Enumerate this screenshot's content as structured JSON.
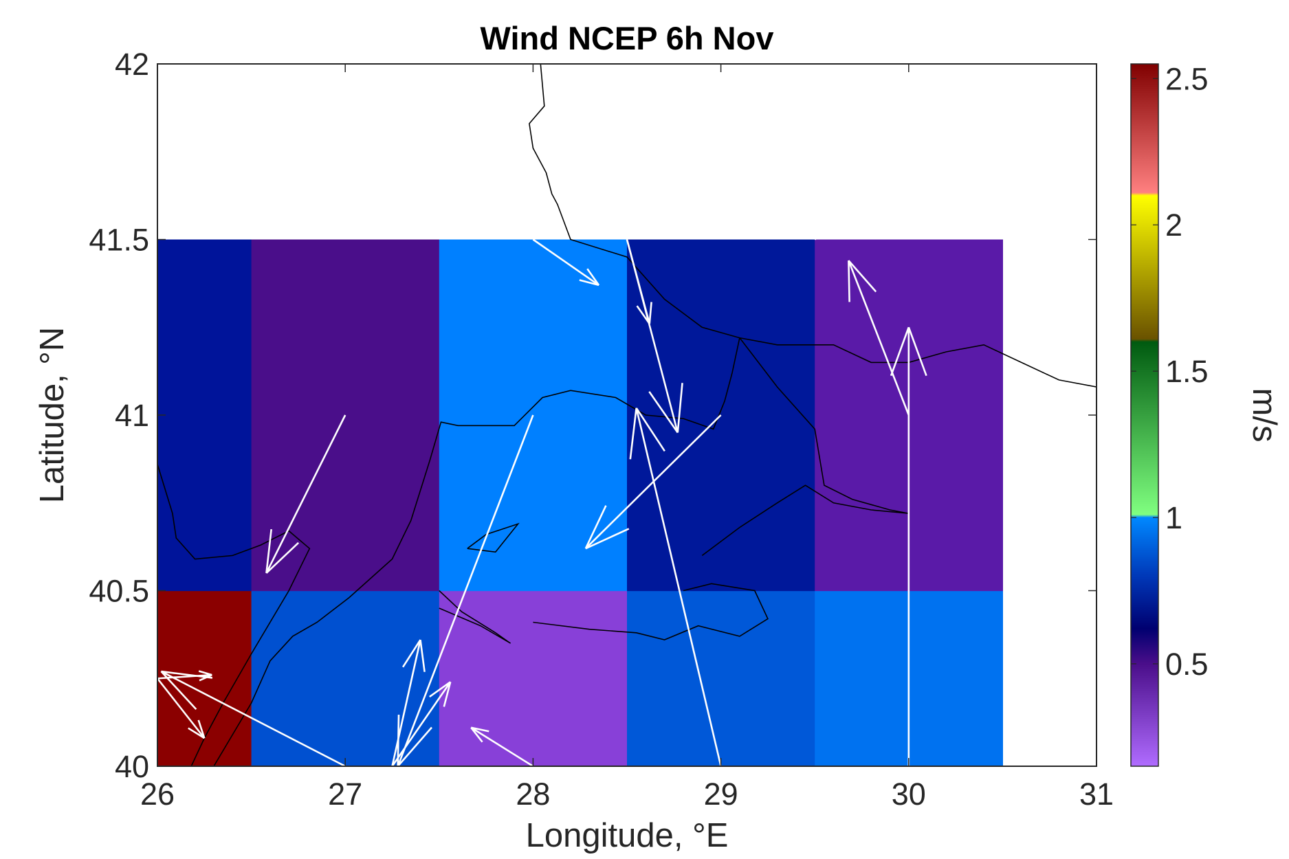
{
  "chart_data": {
    "type": "heatmap",
    "title": "Wind NCEP 6h Nov",
    "xlabel": "Longitude, °E",
    "ylabel": "Latitude, °N",
    "xlim": [
      26,
      31
    ],
    "ylim": [
      40,
      42
    ],
    "xticks": [
      "26",
      "27",
      "28",
      "29",
      "30",
      "31"
    ],
    "yticks": [
      "40",
      "40.5",
      "41",
      "41.5",
      "42"
    ],
    "colorbar": {
      "label": "m/s",
      "range": [
        0.15,
        2.55
      ],
      "ticks": [
        "0.5",
        "1",
        "1.5",
        "2",
        "2.5"
      ],
      "stops": [
        {
          "value": 0.15,
          "color": "#b06cff"
        },
        {
          "value": 0.5,
          "color": "#4a0e8a"
        },
        {
          "value": 0.62,
          "color": "#000070"
        },
        {
          "value": 0.8,
          "color": "#0038b8"
        },
        {
          "value": 1.0,
          "color": "#0088ff"
        },
        {
          "value": 1.01,
          "color": "#80ff80"
        },
        {
          "value": 1.6,
          "color": "#005a10"
        },
        {
          "value": 1.61,
          "color": "#6a5200"
        },
        {
          "value": 2.1,
          "color": "#ffff00"
        },
        {
          "value": 2.11,
          "color": "#ff8080"
        },
        {
          "value": 2.55,
          "color": "#800000"
        }
      ]
    },
    "cells": [
      {
        "lon": [
          26,
          26.5
        ],
        "lat": [
          40,
          40.5
        ],
        "value": 2.5,
        "color": "#8b0000"
      },
      {
        "lon": [
          26.5,
          27.5
        ],
        "lat": [
          40,
          40.5
        ],
        "value": 0.87,
        "color": "#0050d0"
      },
      {
        "lon": [
          27.5,
          28.5
        ],
        "lat": [
          40,
          40.5
        ],
        "value": 0.35,
        "color": "#8840d8"
      },
      {
        "lon": [
          28.5,
          29.5
        ],
        "lat": [
          40,
          40.5
        ],
        "value": 0.88,
        "color": "#0058d8"
      },
      {
        "lon": [
          29.5,
          30.5
        ],
        "lat": [
          40,
          40.5
        ],
        "value": 0.95,
        "color": "#0072f0"
      },
      {
        "lon": [
          26,
          26.5
        ],
        "lat": [
          40.5,
          41.5
        ],
        "value": 0.62,
        "color": "#00149a"
      },
      {
        "lon": [
          26.5,
          27.5
        ],
        "lat": [
          40.5,
          41.5
        ],
        "value": 0.5,
        "color": "#4a0e8a"
      },
      {
        "lon": [
          27.5,
          28.5
        ],
        "lat": [
          40.5,
          41.5
        ],
        "value": 1.0,
        "color": "#0080ff"
      },
      {
        "lon": [
          28.5,
          29.5
        ],
        "lat": [
          40.5,
          41.5
        ],
        "value": 0.62,
        "color": "#00189a"
      },
      {
        "lon": [
          29.5,
          30.5
        ],
        "lat": [
          40.5,
          41.5
        ],
        "value": 0.45,
        "color": "#5a1aa8"
      }
    ],
    "wind_vectors": [
      {
        "x": 27.0,
        "y": 41.0,
        "u": -0.42,
        "v": -0.45
      },
      {
        "x": 26.0,
        "y": 40.25,
        "u": 0.29,
        "v": 0.01
      },
      {
        "x": 26.0,
        "y": 40.25,
        "u": 0.25,
        "v": -0.17
      },
      {
        "x": 27.0,
        "y": 40.0,
        "u": -0.98,
        "v": 0.27
      },
      {
        "x": 27.25,
        "y": 40.0,
        "u": 0.15,
        "v": 0.36
      },
      {
        "x": 27.25,
        "y": 40.0,
        "u": 0.31,
        "v": 0.24
      },
      {
        "x": 28.0,
        "y": 41.0,
        "u": -0.72,
        "v": -1.0
      },
      {
        "x": 28.0,
        "y": 40.0,
        "u": -0.33,
        "v": 0.11
      },
      {
        "x": 28.0,
        "y": 41.5,
        "u": 0.35,
        "v": -0.13
      },
      {
        "x": 29.0,
        "y": 41.0,
        "u": -0.72,
        "v": -0.38
      },
      {
        "x": 29.0,
        "y": 40.0,
        "u": -0.45,
        "v": 1.02
      },
      {
        "x": 28.5,
        "y": 41.5,
        "u": 0.27,
        "v": -0.55
      },
      {
        "x": 28.5,
        "y": 41.5,
        "u": 0.12,
        "v": -0.24
      },
      {
        "x": 29.5,
        "y": 41.5,
        "u": 0.24,
        "v": 0.12
      },
      {
        "x": 30.0,
        "y": 41.0,
        "u": -0.32,
        "v": 0.44
      },
      {
        "x": 30.0,
        "y": 40.0,
        "u": 0.0,
        "v": 1.25
      }
    ],
    "coastlines": [
      [
        [
          28.04,
          42.0
        ],
        [
          28.06,
          41.88
        ],
        [
          27.98,
          41.83
        ],
        [
          28.0,
          41.76
        ],
        [
          28.07,
          41.69
        ],
        [
          28.1,
          41.63
        ],
        [
          28.13,
          41.6
        ],
        [
          28.2,
          41.5
        ],
        [
          28.5,
          41.45
        ],
        [
          28.7,
          41.33
        ],
        [
          28.9,
          41.25
        ],
        [
          29.1,
          41.22
        ],
        [
          29.3,
          41.2
        ],
        [
          29.6,
          41.2
        ],
        [
          29.8,
          41.15
        ],
        [
          30.0,
          41.15
        ],
        [
          30.2,
          41.18
        ],
        [
          30.4,
          41.2
        ],
        [
          30.6,
          41.15
        ],
        [
          30.8,
          41.1
        ],
        [
          31.0,
          41.08
        ]
      ],
      [
        [
          29.1,
          41.22
        ],
        [
          29.06,
          41.12
        ],
        [
          29.02,
          41.04
        ],
        [
          28.96,
          40.96
        ],
        [
          28.8,
          40.99
        ],
        [
          28.6,
          41.0
        ],
        [
          28.44,
          41.05
        ],
        [
          28.2,
          41.07
        ],
        [
          28.05,
          41.05
        ],
        [
          27.9,
          40.97
        ],
        [
          27.72,
          40.97
        ],
        [
          27.6,
          40.97
        ],
        [
          27.51,
          40.98
        ],
        [
          27.45,
          40.87
        ],
        [
          27.35,
          40.7
        ],
        [
          27.25,
          40.59
        ],
        [
          27.02,
          40.48
        ],
        [
          26.85,
          40.41
        ],
        [
          26.72,
          40.37
        ],
        [
          26.6,
          40.3
        ],
        [
          26.5,
          40.18
        ],
        [
          26.3,
          40.0
        ]
      ],
      [
        [
          26.0,
          40.86
        ],
        [
          26.08,
          40.72
        ],
        [
          26.1,
          40.65
        ],
        [
          26.2,
          40.59
        ],
        [
          26.4,
          40.6
        ],
        [
          26.55,
          40.63
        ],
        [
          26.7,
          40.67
        ],
        [
          26.81,
          40.62
        ],
        [
          26.7,
          40.5
        ],
        [
          26.5,
          40.32
        ],
        [
          26.35,
          40.18
        ],
        [
          26.25,
          40.08
        ],
        [
          26.18,
          40.0
        ]
      ],
      [
        [
          27.5,
          40.5
        ],
        [
          27.62,
          40.44
        ],
        [
          27.8,
          40.38
        ],
        [
          27.88,
          40.35
        ],
        [
          27.72,
          40.4
        ],
        [
          27.5,
          40.45
        ]
      ],
      [
        [
          28.0,
          40.41
        ],
        [
          28.3,
          40.39
        ],
        [
          28.55,
          40.38
        ],
        [
          28.7,
          40.36
        ],
        [
          28.88,
          40.4
        ],
        [
          29.1,
          40.37
        ],
        [
          29.25,
          40.42
        ],
        [
          29.18,
          40.5
        ],
        [
          28.95,
          40.52
        ],
        [
          28.8,
          40.5
        ]
      ],
      [
        [
          29.1,
          41.22
        ],
        [
          29.3,
          41.08
        ],
        [
          29.5,
          40.96
        ],
        [
          29.55,
          40.8
        ],
        [
          29.7,
          40.76
        ],
        [
          29.9,
          40.73
        ],
        [
          30.0,
          40.72
        ],
        [
          29.8,
          40.73
        ],
        [
          29.6,
          40.75
        ],
        [
          29.45,
          40.8
        ],
        [
          29.3,
          40.75
        ],
        [
          29.1,
          40.68
        ],
        [
          28.9,
          40.6
        ]
      ],
      [
        [
          27.65,
          40.62
        ],
        [
          27.75,
          40.66
        ],
        [
          27.92,
          40.69
        ],
        [
          27.8,
          40.61
        ],
        [
          27.65,
          40.62
        ]
      ]
    ]
  }
}
